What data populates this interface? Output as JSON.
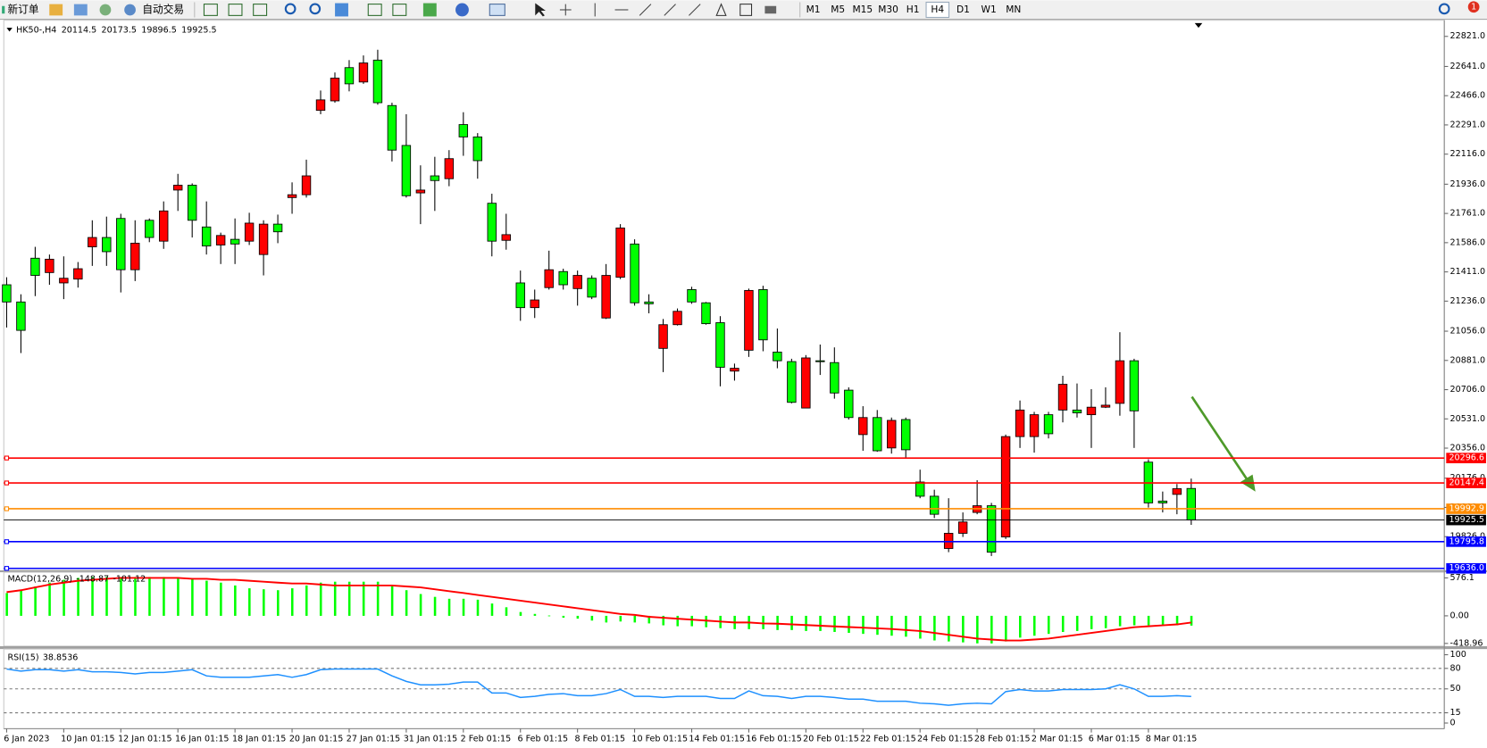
{
  "toolbar": {
    "new_order": "新订单",
    "auto_trading": "自动交易",
    "timeframes": [
      "M1",
      "M5",
      "M15",
      "M30",
      "H1",
      "H4",
      "D1",
      "W1",
      "MN"
    ],
    "badge": 1
  },
  "chart_data": [
    {
      "type": "candlestick",
      "symbol": "HK50-,H4",
      "categories": [
        "6 Jan 2023",
        null,
        null,
        null,
        "10 Jan 01:15",
        null,
        null,
        null,
        "12 Jan 01:15",
        null,
        null,
        null,
        "16 Jan 01:15",
        null,
        null,
        null,
        "18 Jan 01:15",
        null,
        null,
        null,
        "20 Jan 01:15",
        null,
        null,
        null,
        "27 Jan 01:15",
        null,
        null,
        null,
        "31 Jan 01:15",
        null,
        null,
        null,
        "2 Feb 01:15",
        null,
        null,
        null,
        "6 Feb 01:15",
        null,
        null,
        null,
        "8 Feb 01:15",
        null,
        null,
        null,
        "10 Feb 01:15",
        null,
        null,
        null,
        "14 Feb 01:15",
        null,
        null,
        null,
        "16 Feb 01:15",
        null,
        null,
        null,
        "20 Feb 01:15",
        null,
        null,
        null,
        "22 Feb 01:15",
        null,
        null,
        null,
        "24 Feb 01:15",
        null,
        null,
        null,
        "28 Feb 01:15",
        null,
        null,
        null,
        "2 Mar 01:15",
        null,
        null,
        null,
        "6 Mar 01:15",
        null,
        null,
        null,
        "8 Mar 01:15",
        null,
        null,
        null
      ],
      "open": [
        21334,
        21231,
        21493,
        21407,
        21345,
        21368,
        21561,
        21617,
        21731,
        21424,
        21720,
        21595,
        21901,
        21930,
        21680,
        21572,
        21606,
        21595,
        21515,
        21697,
        21856,
        21873,
        22378,
        22435,
        22634,
        22548,
        22679,
        22407,
        22168,
        21884,
        21986,
        21969,
        22293,
        22219,
        21822,
        21600,
        21345,
        21197,
        21317,
        21413,
        21311,
        21373,
        21135,
        21379,
        21578,
        21231,
        20953,
        21095,
        21305,
        21226,
        21107,
        20817,
        20942,
        21305,
        20931,
        20874,
        20596,
        20879,
        20868,
        20703,
        20437,
        20539,
        20357,
        20527,
        20153,
        20068,
        19755,
        19846,
        19971,
        20011,
        19824,
        20425,
        20425,
        20556,
        20584,
        20584,
        20556,
        20601,
        20624,
        20879,
        20272,
        20039,
        20079,
        20114.5
      ],
      "high": [
        21379,
        21277,
        21561,
        21515,
        21504,
        21470,
        21720,
        21742,
        21759,
        21720,
        21731,
        21833,
        21998,
        21941,
        21833,
        21646,
        21731,
        21765,
        21720,
        21754,
        21947,
        22083,
        22497,
        22605,
        22679,
        22707,
        22741,
        22424,
        22355,
        22049,
        22100,
        22140,
        22367,
        22242,
        21879,
        21759,
        21419,
        21305,
        21538,
        21430,
        21419,
        21390,
        21458,
        21697,
        21606,
        21277,
        21129,
        21192,
        21322,
        21231,
        21146,
        20862,
        21311,
        21328,
        21072,
        20891,
        20913,
        20976,
        20959,
        20720,
        20607,
        20584,
        20539,
        20539,
        20227,
        20107,
        20056,
        19971,
        20164,
        20028,
        20437,
        20641,
        20573,
        20573,
        20789,
        20743,
        20709,
        20720,
        21050,
        20891,
        20289,
        20096,
        20141,
        20173.5
      ],
      "low": [
        21078,
        20925,
        21266,
        21334,
        21248,
        21317,
        21447,
        21447,
        21288,
        21356,
        21589,
        21549,
        21776,
        21617,
        21515,
        21458,
        21458,
        21572,
        21390,
        21583,
        21759,
        21856,
        22355,
        22424,
        22492,
        22537,
        22412,
        22072,
        21856,
        21697,
        21776,
        21924,
        22106,
        21969,
        21504,
        21544,
        21118,
        21135,
        21305,
        21305,
        21209,
        21248,
        21129,
        21368,
        21209,
        21163,
        20811,
        21090,
        21220,
        21095,
        20726,
        20760,
        20902,
        20936,
        20834,
        20624,
        20596,
        20794,
        20652,
        20527,
        20340,
        20334,
        20323,
        20300,
        20056,
        19937,
        19733,
        19824,
        19960,
        19710,
        19812,
        20357,
        20329,
        20414,
        20510,
        20539,
        20357,
        20596,
        20550,
        20357,
        20000,
        19971,
        19960,
        19896.5
      ],
      "close": [
        21231,
        21061,
        21390,
        21487,
        21373,
        21430,
        21617,
        21532,
        21424,
        21583,
        21617,
        21776,
        21930,
        21720,
        21566,
        21629,
        21578,
        21703,
        21697,
        21651,
        21873,
        21986,
        22441,
        22571,
        22537,
        22662,
        22424,
        22140,
        21867,
        21901,
        21958,
        22089,
        22219,
        22077,
        21595,
        21634,
        21197,
        21243,
        21424,
        21334,
        21390,
        21260,
        21390,
        21674,
        21226,
        21220,
        21095,
        21175,
        21231,
        21101,
        20840,
        20834,
        21300,
        21004,
        20879,
        20630,
        20896,
        20874,
        20686,
        20539,
        20539,
        20340,
        20522,
        20346,
        20068,
        19960,
        19846,
        19914,
        20011,
        19733,
        20425,
        20584,
        20556,
        20442,
        20738,
        20567,
        20601,
        20613,
        20879,
        20579,
        20028,
        20028,
        20113,
        19925.5
      ],
      "up_color": "#ff0000",
      "down_color": "#00ff00",
      "ylim": [
        19630,
        22912
      ],
      "yticks": [
        {
          "value": 22821,
          "label": "22821.0"
        },
        {
          "value": 22641,
          "label": "22641.0"
        },
        {
          "value": 22466,
          "label": "22466.0"
        },
        {
          "value": 22291,
          "label": "22291.0"
        },
        {
          "value": 22116,
          "label": "22116.0"
        },
        {
          "value": 21936,
          "label": "21936.0"
        },
        {
          "value": 21761,
          "label": "21761.0"
        },
        {
          "value": 21586,
          "label": "21586.0"
        },
        {
          "value": 21411,
          "label": "21411.0"
        },
        {
          "value": 21236,
          "label": "21236.0"
        },
        {
          "value": 21056,
          "label": "21056.0"
        },
        {
          "value": 20881,
          "label": "20881.0"
        },
        {
          "value": 20706,
          "label": "20706.0"
        },
        {
          "value": 20531,
          "label": "20531.0"
        },
        {
          "value": 20356,
          "label": "20356.0"
        },
        {
          "value": 20176,
          "label": "20176.0"
        },
        {
          "value": 20001,
          "label": "20001.0"
        },
        {
          "value": 19826,
          "label": "19826.0"
        }
      ],
      "levels": [
        {
          "value": 20296.6,
          "color": "#ff0000"
        },
        {
          "value": 20147.4,
          "color": "#ff0000"
        },
        {
          "value": 19992.9,
          "color": "#ff8c00"
        },
        {
          "value": 19795.8,
          "color": "#0000ff"
        },
        {
          "value": 19636,
          "label": "19636.0",
          "color": "#0000ff"
        }
      ]
    },
    {
      "type": "macd",
      "name": "MACD(12,26,9)",
      "histogram": [
        346,
        389,
        446,
        504,
        547,
        576,
        590,
        590,
        590,
        590,
        590,
        590,
        576,
        562,
        533,
        504,
        461,
        418,
        403,
        389,
        418,
        461,
        504,
        518,
        518,
        518,
        518,
        461,
        389,
        331,
        288,
        259,
        259,
        245,
        187,
        130,
        58,
        29,
        5,
        -29,
        -43,
        -72,
        -101,
        -86,
        -101,
        -115,
        -144,
        -158,
        -158,
        -173,
        -187,
        -202,
        -202,
        -202,
        -216,
        -216,
        -230,
        -230,
        -245,
        -259,
        -274,
        -288,
        -302,
        -317,
        -346,
        -374,
        -389,
        -403,
        -418,
        -419,
        -389,
        -331,
        -302,
        -274,
        -245,
        -230,
        -202,
        -187,
        -158,
        -144,
        -144,
        -144,
        -144,
        -148.87
      ],
      "signal": [
        360,
        389,
        432,
        475,
        504,
        533,
        547,
        562,
        576,
        576,
        576,
        576,
        576,
        562,
        562,
        547,
        547,
        533,
        518,
        504,
        490,
        490,
        475,
        461,
        461,
        461,
        461,
        461,
        446,
        432,
        403,
        374,
        346,
        317,
        288,
        259,
        230,
        202,
        173,
        144,
        115,
        86,
        58,
        29,
        14,
        -14,
        -29,
        -43,
        -58,
        -72,
        -86,
        -101,
        -101,
        -115,
        -120,
        -130,
        -140,
        -150,
        -160,
        -170,
        -180,
        -190,
        -200,
        -215,
        -230,
        -259,
        -288,
        -317,
        -346,
        -360,
        -374,
        -374,
        -360,
        -346,
        -317,
        -288,
        -259,
        -230,
        -202,
        -173,
        -158,
        -144,
        -130,
        -101.12
      ],
      "histogram_color": "#00ff00",
      "signal_color": "#ff0000",
      "ylim": [
        -461,
        662
      ],
      "yticks": [
        576.1,
        {
          "value": 0,
          "label": "0.00"
        },
        -418.96
      ]
    },
    {
      "type": "rsi",
      "name": "RSI(15)",
      "values": [
        79,
        76,
        78,
        78,
        76,
        78,
        75,
        75,
        74,
        72,
        74,
        74,
        76,
        78,
        69,
        67,
        67,
        67,
        69,
        71,
        67,
        71,
        78,
        79,
        79,
        79,
        79,
        69,
        61,
        56,
        56,
        57,
        60,
        60,
        44,
        44,
        37.5,
        39,
        42,
        43,
        40,
        40,
        43,
        49,
        39,
        39,
        37.5,
        39,
        39,
        39,
        36,
        36,
        47,
        40,
        39,
        36,
        39,
        39,
        37.5,
        35,
        35,
        32,
        32,
        32,
        29,
        28,
        26,
        28,
        29,
        28,
        46,
        49,
        47,
        47,
        49,
        49,
        49,
        50,
        56,
        50,
        39,
        39,
        40,
        38.8536
      ],
      "color": "#1e90ff",
      "ylim": [
        0,
        100
      ],
      "yticks": [
        100,
        80,
        50,
        15,
        0
      ]
    }
  ]
}
